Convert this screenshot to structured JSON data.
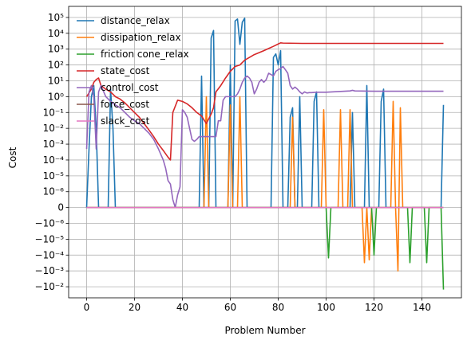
{
  "chart_data": {
    "type": "line",
    "xlabel": "Problem Number",
    "ylabel": "Cost",
    "xlim": [
      -7.5,
      156.5
    ],
    "xticks": [
      0,
      20,
      40,
      60,
      80,
      100,
      120,
      140
    ],
    "yscale": "symlog",
    "linthresh": 1e-06,
    "ylim": [
      -0.05,
      500000
    ],
    "yticks": [
      {
        "value": 100000,
        "label": "10⁵"
      },
      {
        "value": 10000,
        "label": "10⁴"
      },
      {
        "value": 1000,
        "label": "10³"
      },
      {
        "value": 100,
        "label": "10²"
      },
      {
        "value": 10,
        "label": "10¹"
      },
      {
        "value": 1,
        "label": "10⁰"
      },
      {
        "value": 0.1,
        "label": "10⁻¹"
      },
      {
        "value": 0.01,
        "label": "10⁻²"
      },
      {
        "value": 0.001,
        "label": "10⁻³"
      },
      {
        "value": 0.0001,
        "label": "10⁻⁴"
      },
      {
        "value": 1e-05,
        "label": "10⁻⁵"
      },
      {
        "value": 1e-06,
        "label": "10⁻⁶"
      },
      {
        "value": 0,
        "label": "0"
      },
      {
        "value": -1e-06,
        "label": "−10⁻⁶"
      },
      {
        "value": -1e-05,
        "label": "−10⁻⁵"
      },
      {
        "value": -0.0001,
        "label": "−10⁻⁴"
      },
      {
        "value": -0.001,
        "label": "−10⁻³"
      },
      {
        "value": -0.01,
        "label": "−10⁻²"
      }
    ],
    "grid": true,
    "legend": "upper-left",
    "series": [
      {
        "name": "distance_relax",
        "color": "#1f77b4",
        "points": [
          [
            0,
            0
          ],
          [
            1,
            0.0005
          ],
          [
            2,
            1
          ],
          [
            3,
            5
          ],
          [
            4,
            0.01
          ],
          [
            5,
            0
          ],
          [
            6,
            0
          ],
          [
            8,
            0
          ],
          [
            9,
            0
          ],
          [
            10,
            3
          ],
          [
            11,
            0.01
          ],
          [
            12,
            0
          ],
          [
            13,
            0
          ],
          [
            47,
            0
          ],
          [
            48,
            20
          ],
          [
            49,
            0
          ],
          [
            51,
            0
          ],
          [
            52,
            5000
          ],
          [
            53,
            15000
          ],
          [
            54,
            0
          ],
          [
            55,
            0
          ],
          [
            59,
            0
          ],
          [
            60,
            100
          ],
          [
            61,
            0
          ],
          [
            62,
            60000
          ],
          [
            63,
            80000
          ],
          [
            64,
            2000
          ],
          [
            65,
            50000
          ],
          [
            66,
            90000
          ],
          [
            67,
            0
          ],
          [
            77,
            0
          ],
          [
            78,
            300
          ],
          [
            79,
            500
          ],
          [
            80,
            100
          ],
          [
            81,
            800
          ],
          [
            82,
            0
          ],
          [
            84,
            0
          ],
          [
            85,
            0.05
          ],
          [
            86,
            0.2
          ],
          [
            87,
            0
          ],
          [
            88,
            0
          ],
          [
            89,
            1
          ],
          [
            90,
            0
          ],
          [
            94,
            0
          ],
          [
            95,
            0.5
          ],
          [
            96,
            2
          ],
          [
            97,
            0
          ],
          [
            110,
            0
          ],
          [
            111,
            0.1
          ],
          [
            112,
            0
          ],
          [
            115,
            0
          ],
          [
            116,
            0
          ],
          [
            117,
            5
          ],
          [
            118,
            0
          ],
          [
            121,
            0
          ],
          [
            122,
            0
          ],
          [
            123,
            0.5
          ],
          [
            124,
            3
          ],
          [
            125,
            0
          ],
          [
            148,
            0
          ],
          [
            149,
            0.3
          ]
        ]
      },
      {
        "name": "dissipation_relax",
        "color": "#ff7f0e",
        "points": [
          [
            0,
            0
          ],
          [
            49,
            0
          ],
          [
            50,
            1
          ],
          [
            51,
            0
          ],
          [
            59,
            0
          ],
          [
            60,
            0.3
          ],
          [
            61,
            0
          ],
          [
            63,
            0
          ],
          [
            64,
            1
          ],
          [
            65,
            0
          ],
          [
            85,
            0
          ],
          [
            86,
            0.05
          ],
          [
            87,
            0
          ],
          [
            98,
            0
          ],
          [
            99,
            0.15
          ],
          [
            100,
            0
          ],
          [
            105,
            0
          ],
          [
            106,
            0.15
          ],
          [
            107,
            0
          ],
          [
            109,
            0
          ],
          [
            110,
            0.15
          ],
          [
            111,
            0
          ],
          [
            115,
            0
          ],
          [
            116,
            -0.0003
          ],
          [
            117,
            0
          ],
          [
            118,
            -0.0002
          ],
          [
            119,
            0
          ],
          [
            127,
            0
          ],
          [
            128,
            0.5
          ],
          [
            129,
            0
          ],
          [
            130,
            -0.001
          ],
          [
            131,
            0.2
          ],
          [
            132,
            0
          ],
          [
            149,
            0
          ]
        ]
      },
      {
        "name": "friction cone_relax",
        "color": "#2ca02c",
        "points": [
          [
            0,
            0
          ],
          [
            100,
            0
          ],
          [
            101,
            -0.00015
          ],
          [
            102,
            0
          ],
          [
            119,
            0
          ],
          [
            120,
            -0.0001
          ],
          [
            121,
            0
          ],
          [
            134,
            0
          ],
          [
            135,
            -0.0003
          ],
          [
            136,
            0
          ],
          [
            141,
            0
          ],
          [
            142,
            -0.0003
          ],
          [
            143,
            0
          ],
          [
            148,
            0
          ],
          [
            149,
            -0.015
          ]
        ]
      },
      {
        "name": "state_cost",
        "color": "#d62728",
        "points": [
          [
            0,
            1
          ],
          [
            2,
            3
          ],
          [
            3,
            8
          ],
          [
            4,
            12
          ],
          [
            5,
            15
          ],
          [
            6,
            5
          ],
          [
            8,
            3
          ],
          [
            10,
            2
          ],
          [
            12,
            1
          ],
          [
            14,
            0.7
          ],
          [
            16,
            0.4
          ],
          [
            18,
            0.2
          ],
          [
            20,
            0.1
          ],
          [
            22,
            0.05
          ],
          [
            24,
            0.02
          ],
          [
            26,
            0.008
          ],
          [
            28,
            0.003
          ],
          [
            30,
            0.001
          ],
          [
            32,
            0.0004
          ],
          [
            34,
            0.00015
          ],
          [
            35,
            0.0001
          ],
          [
            36,
            0.1
          ],
          [
            38,
            0.6
          ],
          [
            40,
            0.5
          ],
          [
            42,
            0.35
          ],
          [
            44,
            0.2
          ],
          [
            46,
            0.1
          ],
          [
            48,
            0.06
          ],
          [
            50,
            0.02
          ],
          [
            51,
            0.04
          ],
          [
            52,
            0.08
          ],
          [
            53,
            0.2
          ],
          [
            54,
            2
          ],
          [
            56,
            5
          ],
          [
            58,
            15
          ],
          [
            60,
            40
          ],
          [
            62,
            80
          ],
          [
            64,
            100
          ],
          [
            66,
            200
          ],
          [
            68,
            300
          ],
          [
            70,
            450
          ],
          [
            72,
            600
          ],
          [
            74,
            800
          ],
          [
            76,
            1100
          ],
          [
            78,
            1500
          ],
          [
            80,
            2100
          ],
          [
            81,
            2500
          ],
          [
            82,
            2400
          ],
          [
            90,
            2300
          ],
          [
            100,
            2300
          ],
          [
            110,
            2300
          ],
          [
            120,
            2300
          ],
          [
            130,
            2300
          ],
          [
            140,
            2300
          ],
          [
            149,
            2300
          ]
        ]
      },
      {
        "name": "control_cost",
        "color": "#9467bd",
        "points": [
          [
            0,
            0.0005
          ],
          [
            1,
            2
          ],
          [
            2,
            5
          ],
          [
            3,
            1
          ],
          [
            4,
            0.0005
          ],
          [
            5,
            2
          ],
          [
            6,
            5
          ],
          [
            8,
            1
          ],
          [
            10,
            0.5
          ],
          [
            12,
            0.3
          ],
          [
            14,
            0.2
          ],
          [
            16,
            0.1
          ],
          [
            18,
            0.05
          ],
          [
            20,
            0.03
          ],
          [
            22,
            0.02
          ],
          [
            24,
            0.01
          ],
          [
            26,
            0.005
          ],
          [
            28,
            0.002
          ],
          [
            30,
            0.0005
          ],
          [
            32,
            0.0001
          ],
          [
            33,
            3e-05
          ],
          [
            34,
            5e-06
          ],
          [
            35,
            3e-06
          ],
          [
            36,
            5e-07
          ],
          [
            37,
            0
          ],
          [
            38,
            8e-07
          ],
          [
            39,
            2e-06
          ],
          [
            40,
            0.15
          ],
          [
            41,
            0.1
          ],
          [
            42,
            0.05
          ],
          [
            43,
            0.01
          ],
          [
            44,
            0.002
          ],
          [
            45,
            0.0015
          ],
          [
            46,
            0.002
          ],
          [
            47,
            0.003
          ],
          [
            48,
            0.003
          ],
          [
            50,
            0.003
          ],
          [
            51,
            0.003
          ],
          [
            52,
            0.003
          ],
          [
            53,
            0.003
          ],
          [
            54,
            0.003
          ],
          [
            55,
            0.03
          ],
          [
            56,
            0.03
          ],
          [
            57,
            0.6
          ],
          [
            58,
            1
          ],
          [
            60,
            1
          ],
          [
            62,
            1
          ],
          [
            63,
            1.5
          ],
          [
            64,
            3
          ],
          [
            65,
            8
          ],
          [
            66,
            15
          ],
          [
            67,
            20
          ],
          [
            68,
            15
          ],
          [
            69,
            8
          ],
          [
            70,
            1.5
          ],
          [
            71,
            3
          ],
          [
            72,
            8
          ],
          [
            73,
            12
          ],
          [
            74,
            8
          ],
          [
            75,
            12
          ],
          [
            76,
            30
          ],
          [
            77,
            25
          ],
          [
            78,
            20
          ],
          [
            79,
            40
          ],
          [
            80,
            50
          ],
          [
            81,
            60
          ],
          [
            82,
            80
          ],
          [
            83,
            50
          ],
          [
            84,
            30
          ],
          [
            85,
            5
          ],
          [
            86,
            3
          ],
          [
            87,
            4
          ],
          [
            88,
            3
          ],
          [
            89,
            2
          ],
          [
            90,
            1.5
          ],
          [
            91,
            2
          ],
          [
            92,
            1.7
          ],
          [
            93,
            1.8
          ],
          [
            94,
            1.8
          ],
          [
            96,
            1.9
          ],
          [
            100,
            1.9
          ],
          [
            110,
            2.3
          ],
          [
            111,
            2.5
          ],
          [
            112,
            2.3
          ],
          [
            120,
            2.2
          ],
          [
            130,
            2.2
          ],
          [
            140,
            2.2
          ],
          [
            149,
            2.2
          ]
        ]
      },
      {
        "name": "force_cost",
        "color": "#8c564b",
        "points": [
          [
            0,
            0
          ],
          [
            149,
            0
          ]
        ]
      },
      {
        "name": "slack_cost",
        "color": "#e377c2",
        "points": [
          [
            0,
            0
          ],
          [
            149,
            0
          ]
        ]
      }
    ]
  }
}
